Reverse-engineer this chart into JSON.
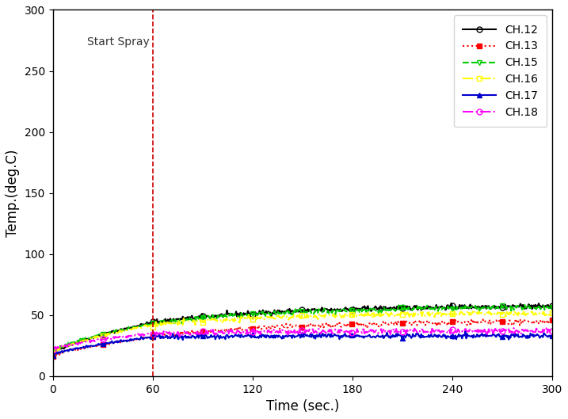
{
  "title": "",
  "xlabel": "Time (sec.)",
  "ylabel": "Temp.(deg.C)",
  "xlim": [
    0,
    300
  ],
  "ylim": [
    0,
    300
  ],
  "xticks": [
    0,
    60,
    120,
    180,
    240,
    300
  ],
  "yticks": [
    0,
    50,
    100,
    150,
    200,
    250,
    300
  ],
  "spray_line_x": 60,
  "spray_label": "Start Spray",
  "channels": [
    {
      "name": "CH.12",
      "color": "#000000",
      "linestyle": "-",
      "marker": "o",
      "markerfacecolor": "none",
      "markersize": 5,
      "linewidth": 1.5,
      "start_val": 18,
      "peak_val": 44,
      "end_val": 58
    },
    {
      "name": "CH.13",
      "color": "#ff0000",
      "linestyle": ":",
      "marker": "s",
      "markerfacecolor": "#ff0000",
      "markersize": 4,
      "linewidth": 1.5,
      "start_val": 16,
      "peak_val": 32,
      "end_val": 45
    },
    {
      "name": "CH.15",
      "color": "#00cc00",
      "linestyle": "--",
      "marker": "v",
      "markerfacecolor": "none",
      "markersize": 5,
      "linewidth": 1.5,
      "start_val": 20,
      "peak_val": 43,
      "end_val": 57
    },
    {
      "name": "CH.16",
      "color": "#ffff00",
      "linestyle": "-.",
      "marker": "s",
      "markerfacecolor": "none",
      "markersize": 5,
      "linewidth": 1.5,
      "start_val": 19,
      "peak_val": 42,
      "end_val": 52
    },
    {
      "name": "CH.17",
      "color": "#0000cc",
      "linestyle": "-",
      "marker": "^",
      "markerfacecolor": "#0000cc",
      "markersize": 5,
      "linewidth": 1.5,
      "start_val": 17,
      "peak_val": 32,
      "end_val": 33
    },
    {
      "name": "CH.18",
      "color": "#ff00ff",
      "linestyle": "-.",
      "marker": "o",
      "markerfacecolor": "none",
      "markersize": 5,
      "linewidth": 1.5,
      "start_val": 22,
      "peak_val": 35,
      "end_val": 37
    }
  ]
}
